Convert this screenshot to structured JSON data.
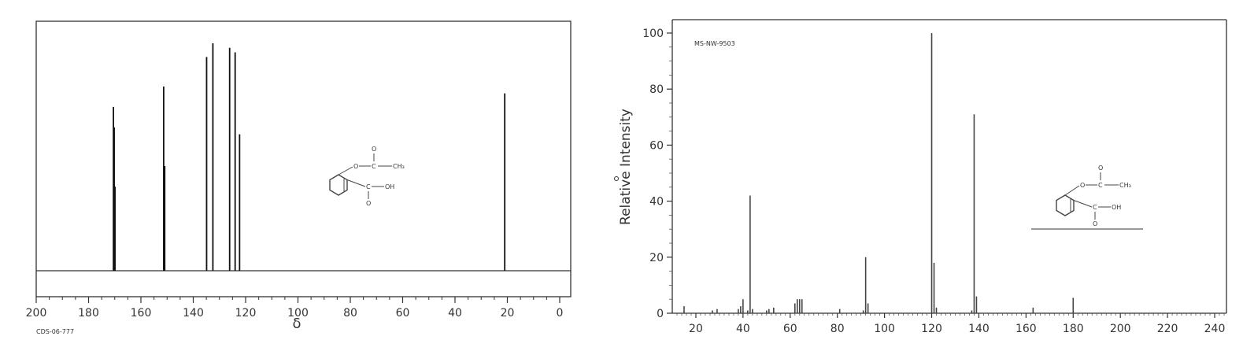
{
  "chart_data": [
    {
      "type": "bar",
      "subtype": "nmr-stick-spectrum",
      "xlabel": "δ",
      "xlim": [
        200,
        0
      ],
      "x_reversed": true,
      "grid": false,
      "x_ticks": [
        "200",
        "180",
        "160",
        "140",
        "120",
        "100",
        "80",
        "60",
        "40",
        "20",
        "0"
      ],
      "code": "CDS-06-777",
      "peaks": [
        {
          "x": 170.5,
          "h": 0.72
        },
        {
          "x": 170.2,
          "h": 0.63
        },
        {
          "x": 169.9,
          "h": 0.37
        },
        {
          "x": 151.3,
          "h": 0.81
        },
        {
          "x": 150.9,
          "h": 0.46
        },
        {
          "x": 134.9,
          "h": 0.94
        },
        {
          "x": 132.5,
          "h": 1.0
        },
        {
          "x": 126.1,
          "h": 0.98
        },
        {
          "x": 124.0,
          "h": 0.96
        },
        {
          "x": 122.3,
          "h": 0.6
        },
        {
          "x": 21.0,
          "h": 0.78
        }
      ],
      "structure": {
        "ring_substituent_top": "O",
        "carbonyl_top": "O",
        "top_carbon": "C",
        "methyl": "CH₃",
        "acid_carbon": "C",
        "hydroxyl": "OH",
        "carbonyl_bottom": "O"
      }
    },
    {
      "type": "bar",
      "subtype": "mass-spectrum",
      "ylabel": "Relative Intensity",
      "xlim": [
        10,
        245
      ],
      "ylim": [
        0,
        100
      ],
      "grid": false,
      "code": "MS-NW-9503",
      "x_ticks": [
        "20",
        "40",
        "60",
        "80",
        "100",
        "120",
        "140",
        "160",
        "180",
        "200",
        "220",
        "240"
      ],
      "y_ticks": [
        "0",
        "20",
        "40",
        "60",
        "80",
        "100"
      ],
      "peaks": [
        {
          "x": 15,
          "y": 2.5
        },
        {
          "x": 27,
          "y": 1
        },
        {
          "x": 29,
          "y": 1.5
        },
        {
          "x": 38,
          "y": 1.5
        },
        {
          "x": 39,
          "y": 2.5
        },
        {
          "x": 40,
          "y": 5
        },
        {
          "x": 42,
          "y": 1
        },
        {
          "x": 43,
          "y": 42
        },
        {
          "x": 44,
          "y": 1.5
        },
        {
          "x": 50,
          "y": 1
        },
        {
          "x": 51,
          "y": 1.5
        },
        {
          "x": 53,
          "y": 2
        },
        {
          "x": 62,
          "y": 3.5
        },
        {
          "x": 63,
          "y": 5
        },
        {
          "x": 64,
          "y": 5
        },
        {
          "x": 65,
          "y": 5
        },
        {
          "x": 81,
          "y": 1.5
        },
        {
          "x": 91,
          "y": 1
        },
        {
          "x": 92,
          "y": 20
        },
        {
          "x": 93,
          "y": 3.5
        },
        {
          "x": 120,
          "y": 100
        },
        {
          "x": 121,
          "y": 18
        },
        {
          "x": 122,
          "y": 2
        },
        {
          "x": 137,
          "y": 1
        },
        {
          "x": 138,
          "y": 71
        },
        {
          "x": 139,
          "y": 6
        },
        {
          "x": 163,
          "y": 2
        },
        {
          "x": 180,
          "y": 5.5
        }
      ],
      "structure": {
        "ring_substituent_top": "O",
        "carbonyl_top": "O",
        "top_carbon": "C",
        "methyl": "CH₃",
        "acid_carbon": "C",
        "hydroxyl": "OH",
        "carbonyl_bottom": "O"
      }
    }
  ]
}
